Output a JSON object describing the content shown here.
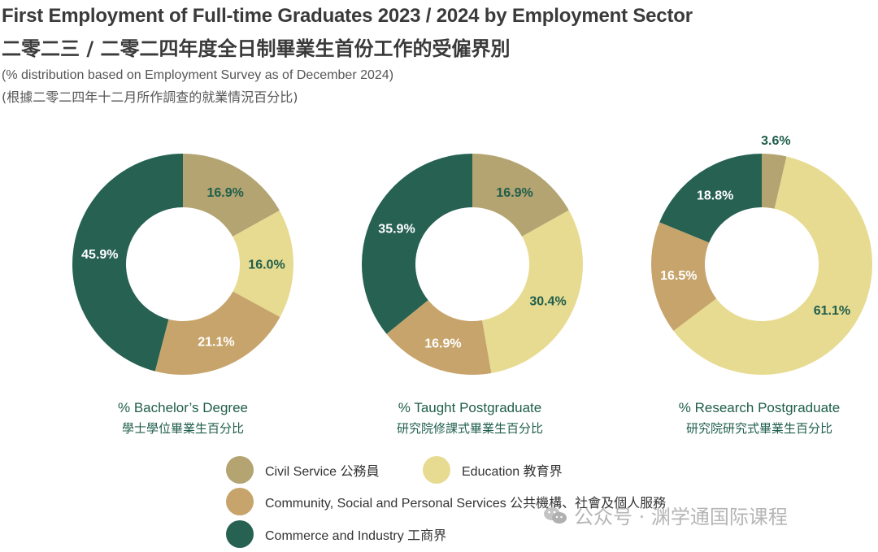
{
  "header": {
    "title_en": "First Employment of Full-time Graduates 2023 / 2024 by Employment Sector",
    "title_zh": "二零二三 / 二零二四年度全日制畢業生首份工作的受僱界別",
    "subtitle_en": "(% distribution based on Employment Survey as of December 2024)",
    "subtitle_zh": "(根據二零二四年十二月所作調查的就業情況百分比)"
  },
  "colors": {
    "civil_service": "#b3a471",
    "education": "#e7db91",
    "community": "#c7a46b",
    "commerce": "#266152"
  },
  "chart_data": [
    {
      "type": "pie",
      "donut": true,
      "title": "% Bachelor’s Degree",
      "title_zh": "學士學位畢業生百分比",
      "categories": [
        "Civil Service",
        "Education",
        "Community, Social and Personal Services",
        "Commerce and Industry"
      ],
      "values": [
        16.9,
        16.0,
        21.1,
        45.9
      ],
      "labels": [
        "16.9%",
        "16.0%",
        "21.1%",
        "45.9%"
      ]
    },
    {
      "type": "pie",
      "donut": true,
      "title": "% Taught Postgraduate",
      "title_zh": "研究院修課式畢業生百分比",
      "categories": [
        "Civil Service",
        "Education",
        "Community, Social and Personal Services",
        "Commerce and Industry"
      ],
      "values": [
        16.9,
        30.4,
        16.9,
        35.9
      ],
      "labels": [
        "16.9%",
        "30.4%",
        "16.9%",
        "35.9%"
      ]
    },
    {
      "type": "pie",
      "donut": true,
      "title": "% Research Postgraduate",
      "title_zh": "研究院研究式畢業生百分比",
      "categories": [
        "Civil Service",
        "Education",
        "Community, Social and Personal Services",
        "Commerce and Industry"
      ],
      "values": [
        3.6,
        61.1,
        16.5,
        18.8
      ],
      "labels": [
        "3.6%",
        "61.1%",
        "16.5%",
        "18.8%"
      ]
    }
  ],
  "legend": [
    {
      "label": "Civil Service 公務員",
      "color_key": "civil_service"
    },
    {
      "label": "Education 教育界",
      "color_key": "education"
    },
    {
      "label": "Community, Social and Personal Services 公共機構、社會及個人服務",
      "color_key": "community"
    },
    {
      "label": "Commerce and Industry 工商界",
      "color_key": "commerce"
    }
  ],
  "watermark": {
    "text": "公众号 · 渊学通国际课程",
    "icon": "wechat-icon"
  }
}
